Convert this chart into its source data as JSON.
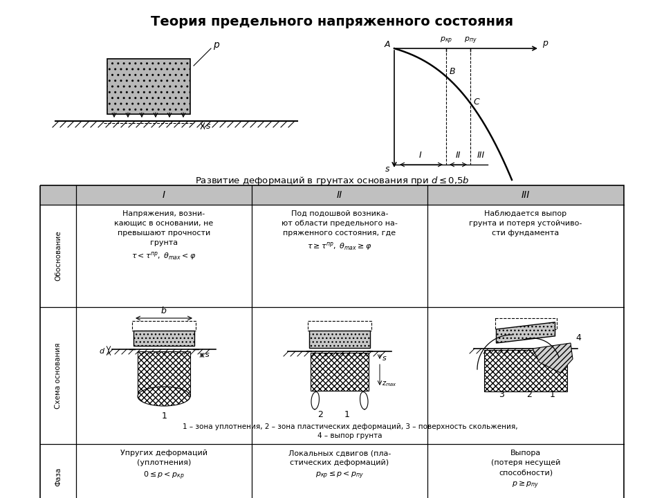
{
  "title": "Теория предельного напряженного состояния",
  "caption": "Развитие деформаций в грунтах основания при $d \\leq 0{,}5b$",
  "row_labels": [
    "Обоснование",
    "Схема основания",
    "Фаза"
  ],
  "col1_obosn_lines": [
    "Напряжения, возни-",
    "кающис в основании, не",
    "превышают прочности",
    "грунта"
  ],
  "col1_obosn_formula": "$\\tau < \\tau^{пр},\\; \\theta_{max} < \\varphi$",
  "col2_obosn_lines": [
    "Под подошвой возника-",
    "ют области предельного на-",
    "пряженного состояния, где"
  ],
  "col2_obosn_formula": "$\\tau \\geq \\tau^{пр},\\; \\theta_{max} \\geq \\varphi$",
  "col3_obosn_lines": [
    "Наблюдается выпор",
    "грунта и потеря устойчиво-",
    "сти фундамента"
  ],
  "col1_faza_lines": [
    "Упругих деформаций",
    "(уплотнения)"
  ],
  "col1_faza_formula": "$0 \\leq p < p_{кр}$",
  "col2_faza_lines": [
    "Локальных сдвигов (пла-",
    "стических деформаций)"
  ],
  "col2_faza_formula": "$p_{кр} \\leq p < p_{пу}$",
  "col3_faza_lines": [
    "Выпора",
    "(потеря несущей",
    "способности)"
  ],
  "col3_faza_formula": "$p \\geq p_{пу}$",
  "footnote": "1 – зона уплотнения, 2 – зона пластических деформаций, 3 – поверхность скольжения,",
  "footnote2": "4 – выпор грунта",
  "bg_header": "#c0c0c0"
}
